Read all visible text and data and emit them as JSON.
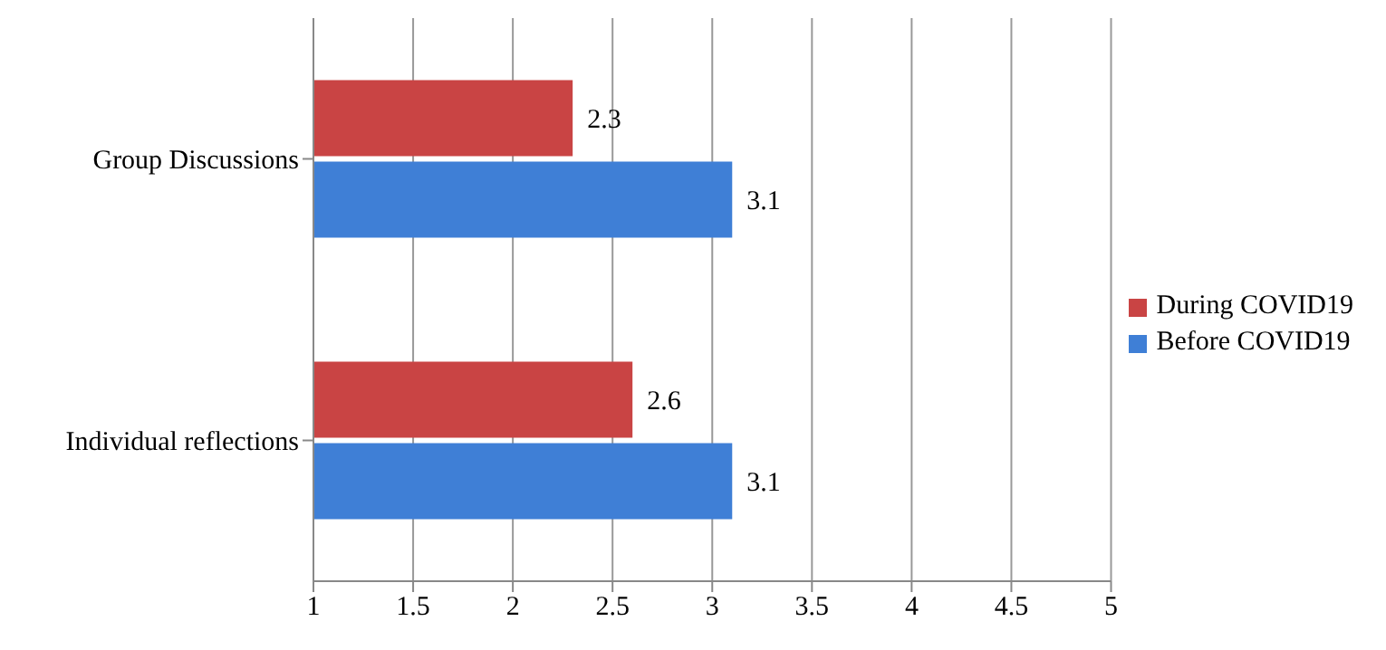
{
  "chart_data": {
    "type": "bar",
    "orientation": "horizontal",
    "categories": [
      "Group Discussions",
      "Individual reflections"
    ],
    "series": [
      {
        "name": "During COVID19",
        "color": "#c94444",
        "values": [
          2.3,
          2.6
        ]
      },
      {
        "name": "Before COVID19",
        "color": "#3f7fd6",
        "values": [
          3.1,
          3.1
        ]
      }
    ],
    "xlim": [
      1,
      5
    ],
    "xticks": [
      1,
      1.5,
      2,
      2.5,
      3,
      3.5,
      4,
      4.5,
      5
    ],
    "grid": "x",
    "legend": "right",
    "data_labels": true
  }
}
